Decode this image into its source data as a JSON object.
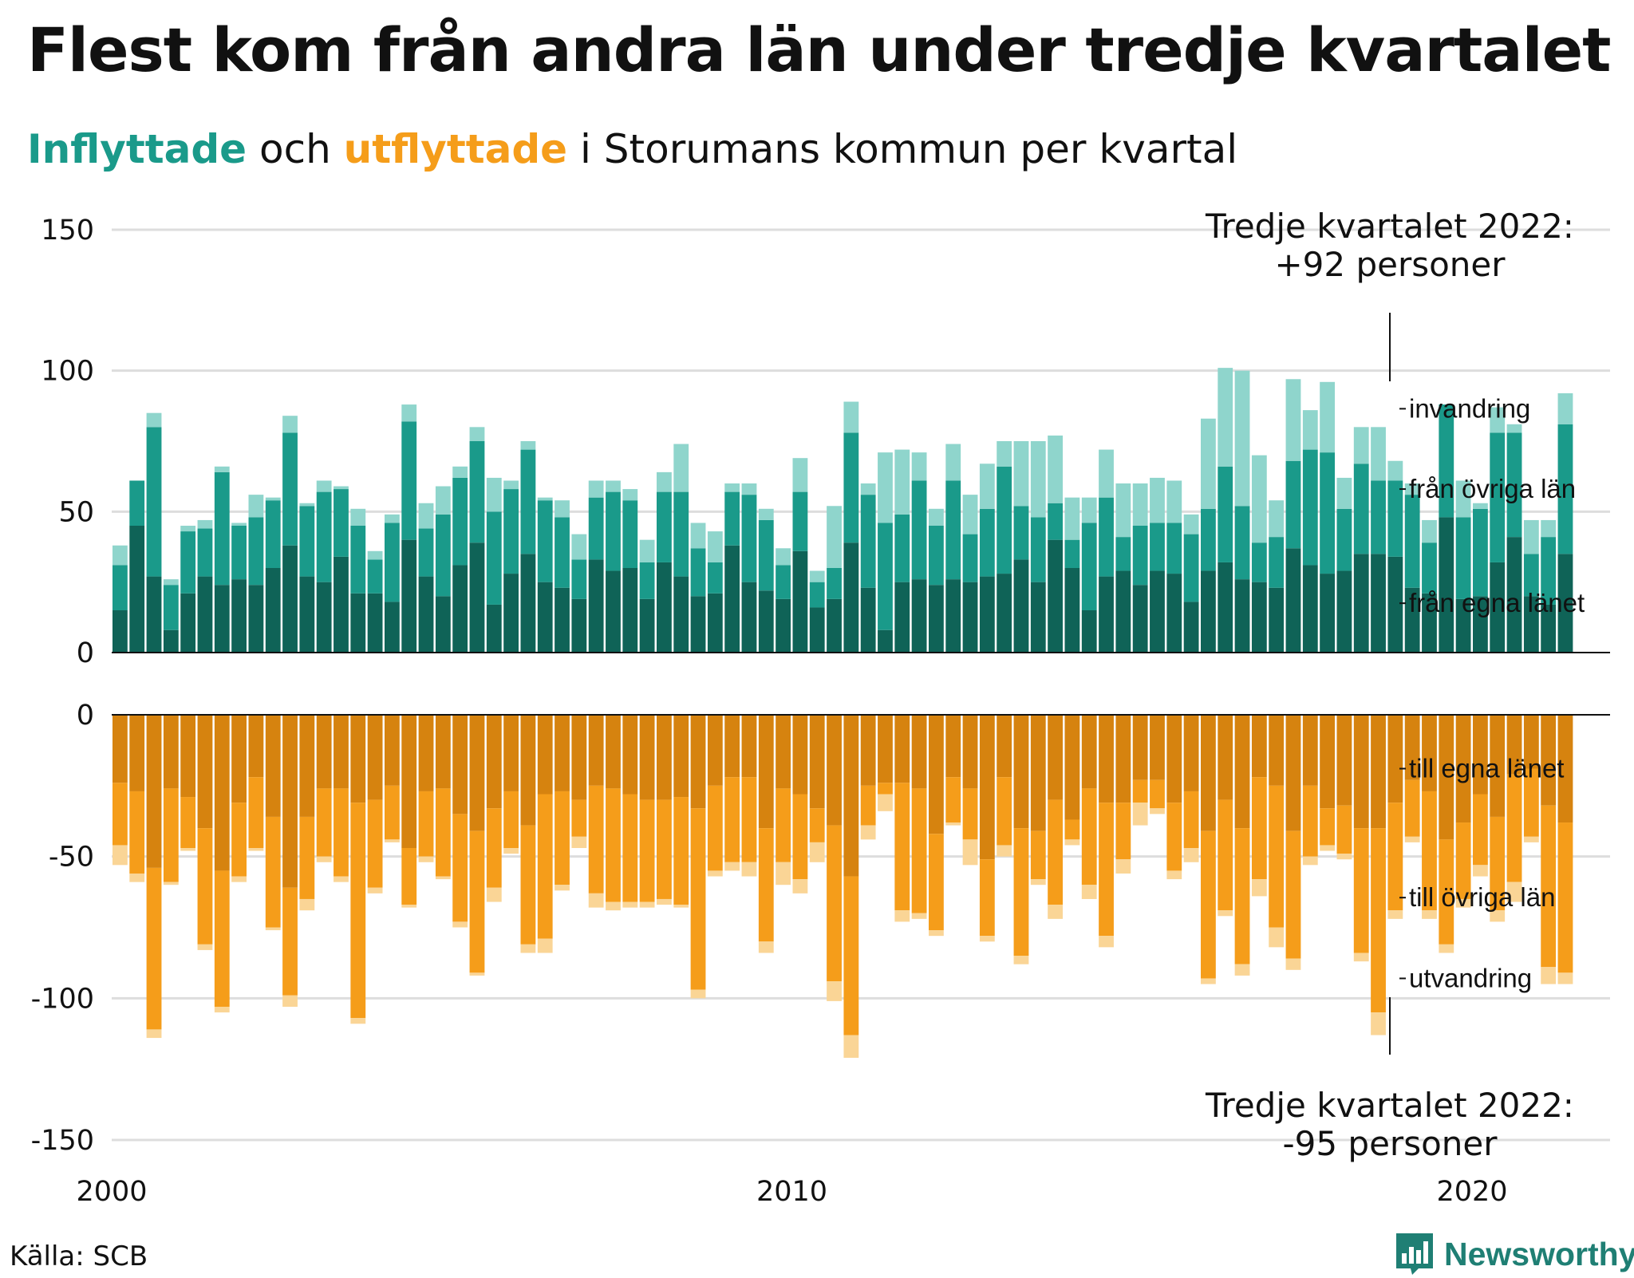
{
  "title": "Flest kom från andra län under tredje kvartalet",
  "subtitle": {
    "in_word": "Inflyttade",
    "joiner": " och ",
    "out_word": "utflyttade",
    "rest": " i Storumans kommun per kvartal"
  },
  "source": "Källa: SCB",
  "brand": "Newsworthy",
  "colors": {
    "in_own_county": "#0f6357",
    "in_other_counties": "#1a9a8a",
    "in_immigration": "#8fd5cc",
    "out_own_county": "#d6830f",
    "out_other_counties": "#f59d1a",
    "out_emigration": "#fad596",
    "gridline": "#dddddd",
    "accent_in": "#1a9a8a",
    "accent_out": "#f59d1a"
  },
  "annotations": {
    "top": [
      "Tredje kvartalet 2022:",
      "+92 personer"
    ],
    "bottom": [
      "Tredje kvartalet 2022:",
      "-95 personer"
    ]
  },
  "chart_data": {
    "type": "bar",
    "stacked": true,
    "x_unit": "kvartal",
    "x_range": [
      "2000 Q1",
      "2022 Q3"
    ],
    "x_ticks": [
      "2000",
      "2010",
      "2020"
    ],
    "x_tick_positions": [
      2000,
      2010,
      2020
    ],
    "panels": [
      {
        "name": "Inflyttade",
        "ylim": [
          0,
          150
        ],
        "yticks": [
          0,
          50,
          100,
          150
        ],
        "series": [
          {
            "name": "från egna länet",
            "values": [
              15,
              45,
              27,
              8,
              21,
              27,
              24,
              26,
              24,
              30,
              38,
              27,
              25,
              34,
              21,
              21,
              18,
              40,
              27,
              20,
              31,
              39,
              17,
              28,
              35,
              25,
              23,
              19,
              33,
              29,
              30,
              19,
              32,
              27,
              20,
              21,
              38,
              25,
              22,
              19,
              36,
              16,
              19,
              39,
              23,
              8,
              25,
              26,
              24,
              26,
              25,
              27,
              28,
              33,
              25,
              40,
              30,
              15,
              27,
              29,
              24,
              29,
              28,
              18,
              29,
              32,
              26,
              25,
              23,
              37,
              31,
              28,
              29,
              35,
              35,
              34,
              23,
              21,
              48,
              19,
              20,
              32,
              41,
              20,
              17,
              35
            ]
          },
          {
            "name": "från övriga län",
            "values": [
              16,
              16,
              53,
              16,
              22,
              17,
              40,
              19,
              24,
              24,
              40,
              25,
              32,
              24,
              24,
              12,
              28,
              42,
              17,
              29,
              31,
              36,
              33,
              30,
              37,
              29,
              25,
              14,
              22,
              28,
              24,
              13,
              25,
              30,
              17,
              11,
              19,
              31,
              25,
              12,
              21,
              9,
              11,
              39,
              33,
              38,
              24,
              35,
              21,
              35,
              17,
              24,
              38,
              19,
              23,
              13,
              10,
              31,
              28,
              12,
              21,
              17,
              18,
              24,
              22,
              34,
              26,
              14,
              18,
              31,
              41,
              43,
              22,
              32,
              26,
              27,
              33,
              18,
              40,
              29,
              31,
              46,
              37,
              15,
              24,
              46
            ]
          },
          {
            "name": "invandring",
            "values": [
              7,
              0,
              5,
              2,
              2,
              3,
              2,
              1,
              8,
              1,
              6,
              1,
              4,
              1,
              6,
              3,
              3,
              6,
              9,
              10,
              4,
              5,
              12,
              3,
              3,
              1,
              6,
              9,
              6,
              4,
              4,
              8,
              7,
              17,
              9,
              11,
              3,
              4,
              4,
              6,
              12,
              4,
              22,
              11,
              4,
              25,
              23,
              10,
              6,
              13,
              14,
              16,
              9,
              23,
              27,
              24,
              15,
              9,
              17,
              19,
              15,
              16,
              15,
              7,
              32,
              35,
              48,
              31,
              13,
              29,
              14,
              25,
              11,
              13,
              19,
              7,
              4,
              8,
              0,
              13,
              2,
              9,
              3,
              12,
              6,
              11
            ]
          }
        ]
      },
      {
        "name": "Utflyttade",
        "ylim": [
          -150,
          0
        ],
        "yticks": [
          0,
          -50,
          -100,
          -150
        ],
        "series": [
          {
            "name": "till egna länet",
            "values": [
              -24,
              -27,
              -54,
              -26,
              -29,
              -40,
              -55,
              -31,
              -22,
              -36,
              -61,
              -36,
              -26,
              -26,
              -31,
              -30,
              -25,
              -47,
              -27,
              -26,
              -35,
              -41,
              -33,
              -27,
              -39,
              -28,
              -27,
              -30,
              -25,
              -26,
              -28,
              -30,
              -30,
              -29,
              -33,
              -25,
              -22,
              -22,
              -40,
              -26,
              -28,
              -33,
              -39,
              -57,
              -25,
              -24,
              -24,
              -26,
              -42,
              -22,
              -26,
              -51,
              -22,
              -40,
              -41,
              -30,
              -37,
              -26,
              -31,
              -31,
              -23,
              -23,
              -31,
              -27,
              -41,
              -30,
              -40,
              -22,
              -25,
              -41,
              -25,
              -33,
              -32,
              -40,
              -40,
              -31,
              -23,
              -27,
              -44,
              -38,
              -28,
              -36,
              -21,
              -19,
              -32,
              -38
            ]
          },
          {
            "name": "till övriga län",
            "values": [
              -22,
              -29,
              -57,
              -33,
              -18,
              -41,
              -48,
              -26,
              -25,
              -39,
              -38,
              -29,
              -24,
              -31,
              -76,
              -31,
              -19,
              -20,
              -23,
              -31,
              -38,
              -50,
              -28,
              -20,
              -42,
              -51,
              -33,
              -13,
              -38,
              -40,
              -38,
              -36,
              -35,
              -38,
              -64,
              -30,
              -30,
              -30,
              -40,
              -26,
              -30,
              -12,
              -55,
              -56,
              -14,
              -4,
              -45,
              -44,
              -34,
              -16,
              -18,
              -27,
              -24,
              -45,
              -17,
              -37,
              -7,
              -34,
              -47,
              -20,
              -8,
              -10,
              -24,
              -20,
              -52,
              -39,
              -48,
              -36,
              -50,
              -45,
              -25,
              -13,
              -17,
              -44,
              -65,
              -38,
              -20,
              -42,
              -37,
              -27,
              -25,
              -33,
              -38,
              -24,
              -57,
              -53
            ]
          },
          {
            "name": "utvandring",
            "values": [
              -7,
              -3,
              -3,
              -1,
              -1,
              -2,
              -2,
              -2,
              -1,
              -1,
              -4,
              -4,
              -2,
              -2,
              -2,
              -2,
              -1,
              -1,
              -2,
              -1,
              -2,
              -1,
              -5,
              -2,
              -3,
              -5,
              -2,
              -4,
              -5,
              -3,
              -2,
              -2,
              -2,
              -1,
              -3,
              -2,
              -3,
              -5,
              -4,
              -8,
              -5,
              -7,
              -7,
              -8,
              -5,
              -6,
              -4,
              -2,
              -2,
              -1,
              -9,
              -2,
              -4,
              -3,
              -2,
              -5,
              -2,
              -5,
              -4,
              -5,
              -8,
              -2,
              -3,
              -5,
              -2,
              -2,
              -4,
              -6,
              -7,
              -4,
              -3,
              -2,
              -2,
              -3,
              -8,
              -3,
              -2,
              -3,
              -3,
              -3,
              -4,
              -4,
              -7,
              -2,
              -6,
              -4
            ]
          }
        ]
      }
    ]
  }
}
